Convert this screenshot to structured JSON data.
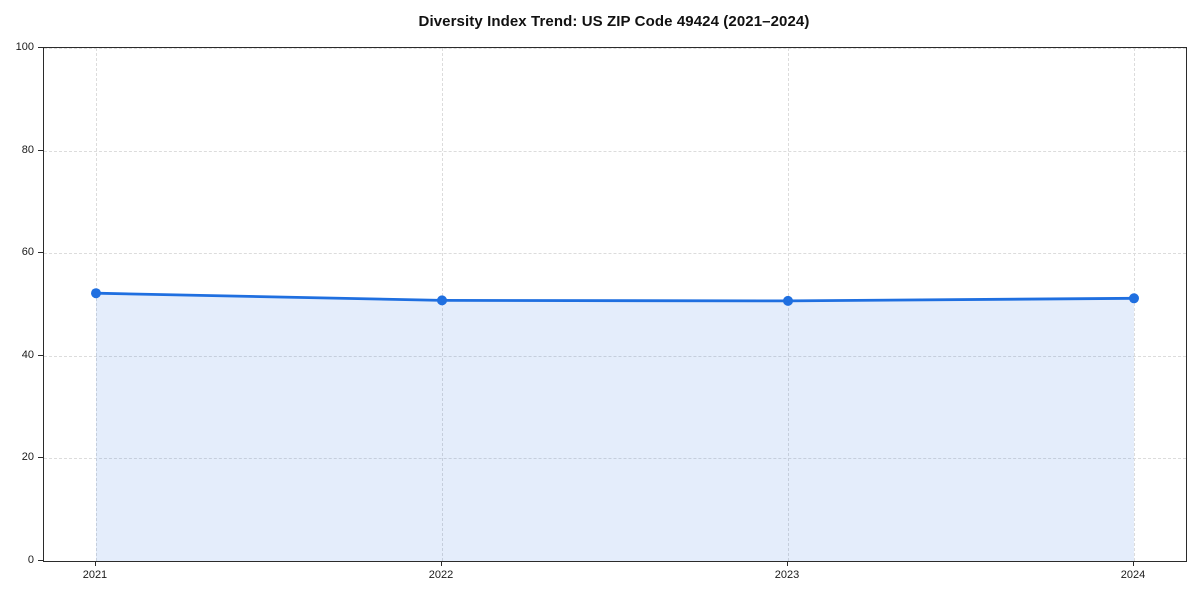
{
  "title": "Diversity Index Trend: US ZIP Code 49424 (2021–2024)",
  "chart_data": {
    "type": "area",
    "title": "Diversity Index Trend: US ZIP Code 49424 (2021–2024)",
    "x": [
      2021,
      2022,
      2023,
      2024
    ],
    "series": [
      {
        "name": "Diversity Index",
        "values": [
          52.2,
          50.8,
          50.7,
          51.2
        ]
      }
    ],
    "xlabel": "",
    "ylabel": "",
    "ylim": [
      0,
      100
    ],
    "yticks": [
      0,
      20,
      40,
      60,
      80,
      100
    ],
    "xtick_labels": [
      "2021",
      "2022",
      "2023",
      "2024"
    ],
    "grid": true,
    "grid_style": "dashed",
    "legend_position": "none",
    "colors": {
      "line": "#1f6fe0",
      "marker": "#1f6fe0",
      "fill": "rgba(31, 111, 224, 0.12)",
      "grid": "#dcdcdc",
      "spine": "#2b2b2b",
      "text": "#1a1a1a",
      "background": "#ffffff"
    }
  }
}
